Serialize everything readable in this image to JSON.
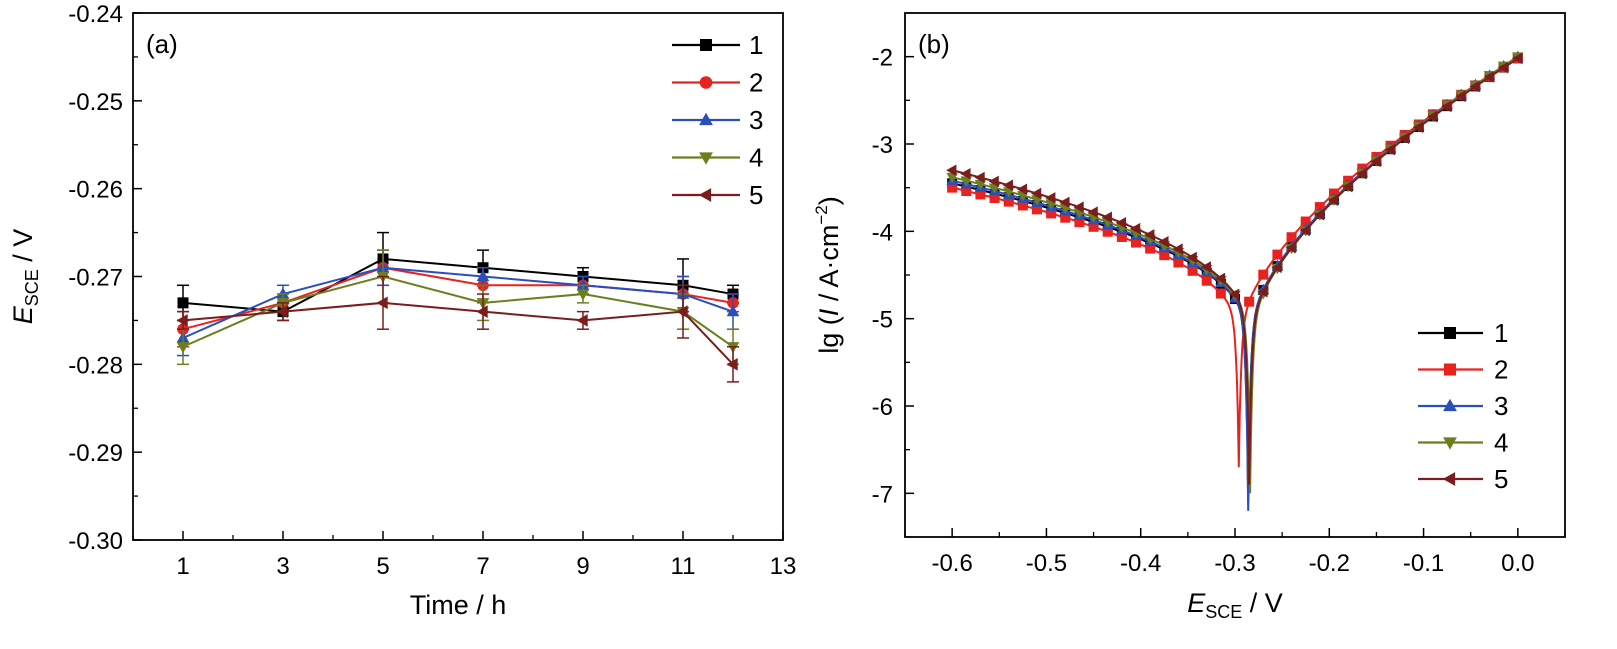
{
  "chart_data": [
    {
      "type": "line",
      "panel_label": "(a)",
      "xlabel": "Time / h",
      "ylabel_main": "E",
      "ylabel_sub": "SCE",
      "ylabel_rest": " / V",
      "xlim": [
        0,
        13
      ],
      "ylim": [
        -0.3,
        -0.24
      ],
      "xticks": [
        1,
        3,
        5,
        7,
        9,
        11,
        13
      ],
      "yticks": [
        -0.3,
        -0.29,
        -0.28,
        -0.27,
        -0.26,
        -0.25,
        -0.24
      ],
      "xtick_labels": [
        "1",
        "3",
        "5",
        "7",
        "9",
        "11",
        "13"
      ],
      "ytick_labels": [
        "-0.30",
        "-0.29",
        "-0.28",
        "-0.27",
        "-0.26",
        "-0.25",
        "-0.24"
      ],
      "grid": false,
      "legend_position": "top-right",
      "x": [
        1,
        3,
        5,
        7,
        9,
        11,
        12
      ],
      "series": [
        {
          "name": "1",
          "color": "#000000",
          "marker": "square",
          "values": [
            -0.273,
            -0.274,
            -0.268,
            -0.269,
            -0.27,
            -0.271,
            -0.272
          ],
          "errors": [
            0.002,
            0.001,
            0.003,
            0.002,
            0.001,
            0.003,
            0.001
          ]
        },
        {
          "name": "2",
          "color": "#e8231f",
          "marker": "circle",
          "values": [
            -0.276,
            -0.273,
            -0.269,
            -0.271,
            -0.271,
            -0.272,
            -0.273
          ],
          "errors": [
            0.002,
            0.001,
            0.002,
            0.002,
            0.001,
            0.002,
            0.001
          ]
        },
        {
          "name": "3",
          "color": "#2a4fbd",
          "marker": "triangle-up",
          "values": [
            -0.277,
            -0.272,
            -0.269,
            -0.27,
            -0.271,
            -0.272,
            -0.274
          ],
          "errors": [
            0.002,
            0.001,
            0.002,
            0.001,
            0.001,
            0.002,
            0.002
          ]
        },
        {
          "name": "4",
          "color": "#6b7f1e",
          "marker": "triangle-down",
          "values": [
            -0.278,
            -0.273,
            -0.27,
            -0.273,
            -0.272,
            -0.274,
            -0.278
          ],
          "errors": [
            0.002,
            0.001,
            0.003,
            0.002,
            0.001,
            0.002,
            0.002
          ]
        },
        {
          "name": "5",
          "color": "#7b1d1d",
          "marker": "triangle-left",
          "values": [
            -0.275,
            -0.274,
            -0.273,
            -0.274,
            -0.275,
            -0.274,
            -0.28
          ],
          "errors": [
            0.001,
            0.001,
            0.003,
            0.002,
            0.001,
            0.003,
            0.002
          ]
        }
      ]
    },
    {
      "type": "line",
      "panel_label": "(b)",
      "xlabel_main": "E",
      "xlabel_sub": "SCE",
      "xlabel_rest": " / V",
      "ylabel": "lg (I / A·cm−2)",
      "ylabel_prefix": "lg (",
      "ylabel_italic": "I",
      "ylabel_mid": " / A·cm",
      "ylabel_sup": "−2",
      "ylabel_suffix": ")",
      "xlim": [
        -0.65,
        0.05
      ],
      "ylim": [
        -7.5,
        -1.5
      ],
      "xticks": [
        -0.6,
        -0.5,
        -0.4,
        -0.3,
        -0.2,
        -0.1,
        0.0
      ],
      "yticks": [
        -7,
        -6,
        -5,
        -4,
        -3,
        -2
      ],
      "xtick_labels": [
        "-0.6",
        "-0.5",
        "-0.4",
        "-0.3",
        "-0.2",
        "-0.1",
        "0.0"
      ],
      "ytick_labels": [
        "-7",
        "-6",
        "-5",
        "-4",
        "-3",
        "-2"
      ],
      "grid": false,
      "legend_position": "bottom-right",
      "series": [
        {
          "name": "1",
          "color": "#000000",
          "marker": "square",
          "ecorr": -0.286,
          "ic_start": -3.45,
          "ia_end": -2.02,
          "imin": -7.1
        },
        {
          "name": "2",
          "color": "#e8231f",
          "marker": "square",
          "ecorr": -0.296,
          "ic_start": -3.5,
          "ia_end": -2.02,
          "imin": -6.7
        },
        {
          "name": "3",
          "color": "#2a4fbd",
          "marker": "triangle-up",
          "ecorr": -0.286,
          "ic_start": -3.42,
          "ia_end": -2.0,
          "imin": -7.2
        },
        {
          "name": "4",
          "color": "#6b7f1e",
          "marker": "triangle-down",
          "ecorr": -0.284,
          "ic_start": -3.38,
          "ia_end": -2.0,
          "imin": -7.0
        },
        {
          "name": "5",
          "color": "#7b1d1d",
          "marker": "triangle-left",
          "ecorr": -0.285,
          "ic_start": -3.3,
          "ia_end": -2.02,
          "imin": -6.9
        }
      ]
    }
  ]
}
